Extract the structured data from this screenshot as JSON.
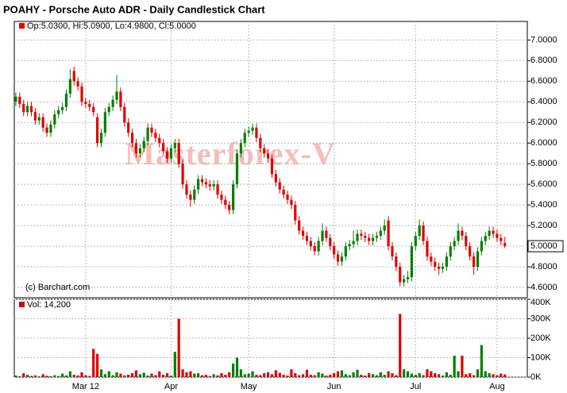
{
  "chart_data": [
    {
      "type": "candlestick",
      "title": "POAHY - Porsche Auto ADR - Daily Candlestick Chart",
      "annotation": "Op:5.0300, Hi:5.0900, Lo:4.9800, Cl:5.0000",
      "watermark": "Masterforex-V",
      "credit": "(c) Barchart.com",
      "last_price": {
        "value": 5.0,
        "label": "5.0000"
      },
      "up_color": "#008000",
      "down_color": "#e00000",
      "categories": [
        null,
        null,
        null,
        null,
        null,
        null,
        null,
        null,
        null,
        null,
        null,
        null,
        null,
        null,
        null,
        null,
        null,
        null,
        "Mar 12",
        null,
        null,
        null,
        null,
        null,
        null,
        null,
        null,
        null,
        null,
        null,
        null,
        null,
        null,
        null,
        null,
        null,
        null,
        null,
        null,
        null,
        "Apr",
        null,
        null,
        null,
        null,
        null,
        null,
        null,
        null,
        null,
        null,
        null,
        null,
        null,
        null,
        null,
        null,
        null,
        null,
        null,
        "May",
        null,
        null,
        null,
        null,
        null,
        null,
        null,
        null,
        null,
        null,
        null,
        null,
        null,
        null,
        null,
        null,
        null,
        null,
        null,
        null,
        null,
        "Jun",
        null,
        null,
        null,
        null,
        null,
        null,
        null,
        null,
        null,
        null,
        null,
        null,
        null,
        null,
        null,
        null,
        null,
        null,
        null,
        null,
        "Jul",
        null,
        null,
        null,
        null,
        null,
        null,
        null,
        null,
        null,
        null,
        null,
        null,
        null,
        null,
        null,
        null,
        null,
        null,
        null,
        null,
        "Aug",
        null,
        null
      ],
      "open": [
        6.4,
        6.45,
        6.38,
        6.3,
        6.36,
        6.3,
        6.22,
        6.25,
        6.15,
        6.1,
        6.18,
        6.28,
        6.32,
        6.35,
        6.48,
        6.7,
        6.6,
        6.55,
        6.4,
        6.38,
        6.35,
        6.25,
        6.0,
        6.1,
        6.3,
        6.35,
        6.42,
        6.5,
        6.35,
        6.2,
        6.1,
        6.0,
        5.9,
        5.95,
        6.02,
        6.15,
        6.1,
        6.05,
        6.0,
        5.92,
        5.85,
        5.95,
        6.0,
        5.8,
        5.6,
        5.5,
        5.45,
        5.55,
        5.65,
        5.62,
        5.6,
        5.58,
        5.6,
        5.5,
        5.45,
        5.4,
        5.35,
        5.6,
        5.9,
        6.0,
        6.1,
        6.12,
        6.15,
        6.05,
        5.95,
        5.9,
        5.85,
        5.7,
        5.62,
        5.55,
        5.5,
        5.45,
        5.4,
        5.25,
        5.15,
        5.1,
        5.05,
        5.0,
        4.95,
        5.05,
        5.15,
        5.08,
        5.0,
        4.92,
        4.85,
        4.9,
        5.0,
        5.02,
        5.05,
        5.12,
        5.1,
        5.08,
        5.05,
        5.08,
        5.1,
        5.15,
        5.25,
        5.0,
        4.9,
        4.8,
        4.65,
        4.68,
        4.7,
        5.0,
        5.1,
        5.2,
        5.05,
        4.9,
        4.85,
        4.8,
        4.78,
        4.8,
        4.9,
        5.0,
        5.05,
        5.15,
        5.1,
        5.0,
        4.9,
        4.8,
        4.95,
        5.05,
        5.1,
        5.15,
        5.12,
        5.08,
        5.03
      ],
      "high": [
        6.49,
        6.49,
        6.42,
        6.4,
        6.4,
        6.34,
        6.29,
        6.29,
        6.19,
        6.22,
        6.32,
        6.36,
        6.39,
        6.52,
        6.72,
        6.74,
        6.64,
        6.59,
        6.44,
        6.42,
        6.39,
        6.29,
        6.14,
        6.34,
        6.39,
        6.46,
        6.66,
        6.54,
        6.39,
        6.24,
        6.14,
        6.04,
        5.99,
        6.06,
        6.19,
        6.19,
        6.14,
        6.09,
        6.04,
        5.96,
        5.99,
        6.04,
        6.04,
        5.84,
        5.64,
        5.54,
        5.59,
        5.69,
        5.69,
        5.66,
        5.64,
        5.64,
        5.64,
        5.54,
        5.49,
        5.44,
        5.64,
        5.94,
        6.04,
        6.14,
        6.16,
        6.19,
        6.19,
        6.09,
        5.99,
        5.94,
        5.89,
        5.74,
        5.66,
        5.59,
        5.54,
        5.49,
        5.44,
        5.29,
        5.19,
        5.14,
        5.09,
        5.04,
        5.09,
        5.22,
        5.19,
        5.12,
        5.04,
        4.96,
        4.94,
        5.04,
        5.06,
        5.15,
        5.16,
        5.16,
        5.14,
        5.12,
        5.12,
        5.14,
        5.19,
        5.26,
        5.29,
        5.04,
        4.94,
        4.84,
        4.72,
        4.76,
        5.04,
        5.14,
        5.26,
        5.24,
        5.09,
        4.94,
        4.89,
        4.84,
        4.84,
        4.94,
        5.04,
        5.09,
        5.22,
        5.19,
        5.14,
        5.04,
        4.94,
        4.99,
        5.09,
        5.14,
        5.19,
        5.19,
        5.16,
        5.12,
        5.09
      ],
      "low": [
        6.36,
        6.34,
        6.26,
        6.26,
        6.26,
        6.18,
        6.18,
        6.11,
        6.06,
        6.06,
        6.14,
        6.24,
        6.28,
        6.31,
        6.44,
        6.56,
        6.51,
        6.36,
        6.34,
        6.31,
        6.26,
        5.96,
        5.96,
        6.06,
        6.26,
        6.31,
        6.38,
        6.31,
        6.16,
        6.06,
        5.96,
        5.86,
        5.86,
        5.91,
        5.98,
        6.06,
        6.01,
        5.96,
        5.88,
        5.81,
        5.81,
        5.91,
        5.76,
        5.56,
        5.46,
        5.38,
        5.41,
        5.51,
        5.58,
        5.56,
        5.54,
        5.54,
        5.46,
        5.41,
        5.36,
        5.31,
        5.31,
        5.56,
        5.86,
        5.96,
        6.06,
        6.08,
        6.01,
        5.91,
        5.86,
        5.81,
        5.66,
        5.58,
        5.51,
        5.46,
        5.41,
        5.36,
        5.21,
        5.11,
        5.06,
        5.01,
        4.96,
        4.91,
        4.91,
        5.01,
        5.04,
        4.96,
        4.88,
        4.81,
        4.81,
        4.86,
        4.96,
        4.98,
        5.01,
        5.06,
        5.04,
        5.01,
        5.01,
        5.04,
        5.06,
        5.11,
        4.96,
        4.86,
        4.76,
        4.61,
        4.61,
        4.64,
        4.66,
        4.96,
        5.06,
        5.01,
        4.86,
        4.81,
        4.76,
        4.72,
        4.74,
        4.76,
        4.86,
        4.96,
        5.01,
        5.06,
        4.96,
        4.86,
        4.72,
        4.76,
        4.91,
        5.01,
        5.06,
        5.08,
        5.04,
        5.01,
        4.98
      ],
      "close": [
        6.45,
        6.38,
        6.3,
        6.36,
        6.3,
        6.22,
        6.25,
        6.15,
        6.1,
        6.18,
        6.28,
        6.32,
        6.35,
        6.48,
        6.62,
        6.6,
        6.55,
        6.4,
        6.38,
        6.35,
        6.3,
        6.0,
        6.1,
        6.3,
        6.35,
        6.42,
        6.5,
        6.35,
        6.2,
        6.1,
        6.0,
        5.9,
        5.95,
        6.02,
        6.15,
        6.1,
        6.05,
        6.0,
        5.92,
        5.85,
        5.95,
        6.0,
        5.8,
        5.6,
        5.5,
        5.45,
        5.55,
        5.65,
        5.62,
        5.6,
        5.58,
        5.6,
        5.5,
        5.45,
        5.4,
        5.35,
        5.6,
        5.9,
        6.0,
        6.1,
        6.12,
        6.15,
        6.05,
        5.95,
        5.9,
        5.85,
        5.7,
        5.62,
        5.55,
        5.5,
        5.45,
        5.4,
        5.25,
        5.15,
        5.1,
        5.05,
        5.0,
        4.95,
        5.05,
        5.15,
        5.08,
        5.0,
        4.92,
        4.85,
        4.9,
        5.0,
        5.02,
        5.05,
        5.12,
        5.1,
        5.08,
        5.05,
        5.08,
        5.1,
        5.15,
        5.2,
        5.0,
        4.9,
        4.8,
        4.65,
        4.68,
        4.7,
        5.0,
        5.1,
        5.2,
        5.05,
        4.9,
        4.85,
        4.8,
        4.78,
        4.8,
        4.9,
        5.0,
        5.05,
        5.15,
        5.1,
        5.0,
        4.9,
        4.8,
        4.95,
        5.05,
        5.1,
        5.15,
        5.12,
        5.08,
        5.05,
        5.0
      ],
      "ylim": [
        4.5,
        7.18
      ],
      "yticks": [
        {
          "value": 4.6,
          "label": "4.6000"
        },
        {
          "value": 4.8,
          "label": "4.8000"
        },
        {
          "value": 5.0,
          "label": "5.0000"
        },
        {
          "value": 5.2,
          "label": "5.2000"
        },
        {
          "value": 5.4,
          "label": "5.4000"
        },
        {
          "value": 5.6,
          "label": "5.6000"
        },
        {
          "value": 5.8,
          "label": "5.8000"
        },
        {
          "value": 6.0,
          "label": "6.0000"
        },
        {
          "value": 6.2,
          "label": "6.2000"
        },
        {
          "value": 6.4,
          "label": "6.4000"
        },
        {
          "value": 6.6,
          "label": "6.6000"
        },
        {
          "value": 6.8,
          "label": "6.8000"
        },
        {
          "value": 7.0,
          "label": "7.0000"
        }
      ],
      "grid": true
    },
    {
      "type": "bar",
      "title": "Vol: 14,200",
      "values": [
        8000,
        5000,
        20000,
        12000,
        6000,
        9000,
        4000,
        15000,
        7000,
        5000,
        10000,
        6000,
        18000,
        9000,
        30000,
        12000,
        8000,
        25000,
        10000,
        6000,
        145000,
        120000,
        40000,
        15000,
        30000,
        10000,
        25000,
        18000,
        9000,
        12000,
        20000,
        35000,
        15000,
        22000,
        8000,
        18000,
        10000,
        30000,
        12000,
        20000,
        8000,
        130000,
        300000,
        40000,
        25000,
        30000,
        18000,
        20000,
        10000,
        12000,
        6000,
        15000,
        9000,
        20000,
        12000,
        25000,
        70000,
        100000,
        40000,
        15000,
        18000,
        30000,
        12000,
        10000,
        20000,
        25000,
        15000,
        35000,
        22000,
        12000,
        8000,
        40000,
        20000,
        10000,
        15000,
        38000,
        12000,
        10000,
        25000,
        18000,
        8000,
        12000,
        20000,
        30000,
        35000,
        15000,
        10000,
        25000,
        38000,
        12000,
        8000,
        20000,
        15000,
        10000,
        25000,
        12000,
        30000,
        20000,
        10000,
        325000,
        40000,
        30000,
        18000,
        12000,
        20000,
        10000,
        40000,
        30000,
        20000,
        15000,
        8000,
        25000,
        12000,
        110000,
        30000,
        110000,
        15000,
        20000,
        10000,
        40000,
        165000,
        30000,
        20000,
        15000,
        10000,
        18000,
        14200
      ],
      "ylim": [
        0,
        400000
      ],
      "yticks": [
        {
          "value": 0,
          "label": "0K"
        },
        {
          "value": 100000,
          "label": "100K"
        },
        {
          "value": 200000,
          "label": "200K"
        },
        {
          "value": 300000,
          "label": "300K"
        },
        {
          "value": 400000,
          "label": "400K"
        }
      ],
      "grid": true
    }
  ]
}
